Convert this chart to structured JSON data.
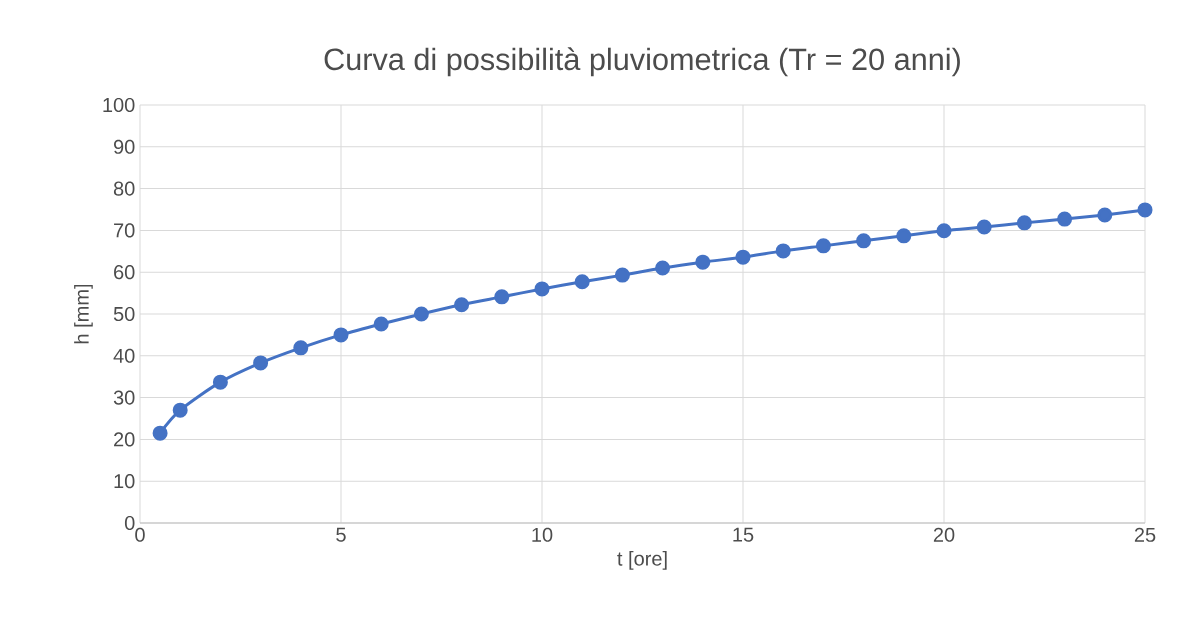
{
  "chart_data": {
    "type": "line",
    "title": "Curva di possibilità pluviometrica (Tr = 20 anni)",
    "xlabel": "t [ore]",
    "ylabel": "h [mm]",
    "x": [
      0.5,
      1,
      2,
      3,
      4,
      5,
      6,
      7,
      8,
      9,
      10,
      11,
      12,
      13,
      14,
      15,
      16,
      17,
      18,
      19,
      20,
      21,
      22,
      23,
      24,
      25
    ],
    "series": [
      {
        "color": "#4472c4",
        "values": [
          21.5,
          27.0,
          33.7,
          38.3,
          41.9,
          45.0,
          47.6,
          50.0,
          52.2,
          54.1,
          56.0,
          57.7,
          59.3,
          61.0,
          62.4,
          63.6,
          65.1,
          66.3,
          67.5,
          68.7,
          69.9,
          70.8,
          71.8,
          72.7,
          73.7,
          74.9
        ]
      }
    ],
    "xlim": [
      0,
      25
    ],
    "ylim": [
      0,
      100
    ],
    "xticks": [
      0,
      5,
      10,
      15,
      20,
      25
    ],
    "yticks": [
      0,
      10,
      20,
      30,
      40,
      50,
      60,
      70,
      80,
      90,
      100
    ],
    "grid": true,
    "marker": "circle",
    "line_style": "solid"
  }
}
